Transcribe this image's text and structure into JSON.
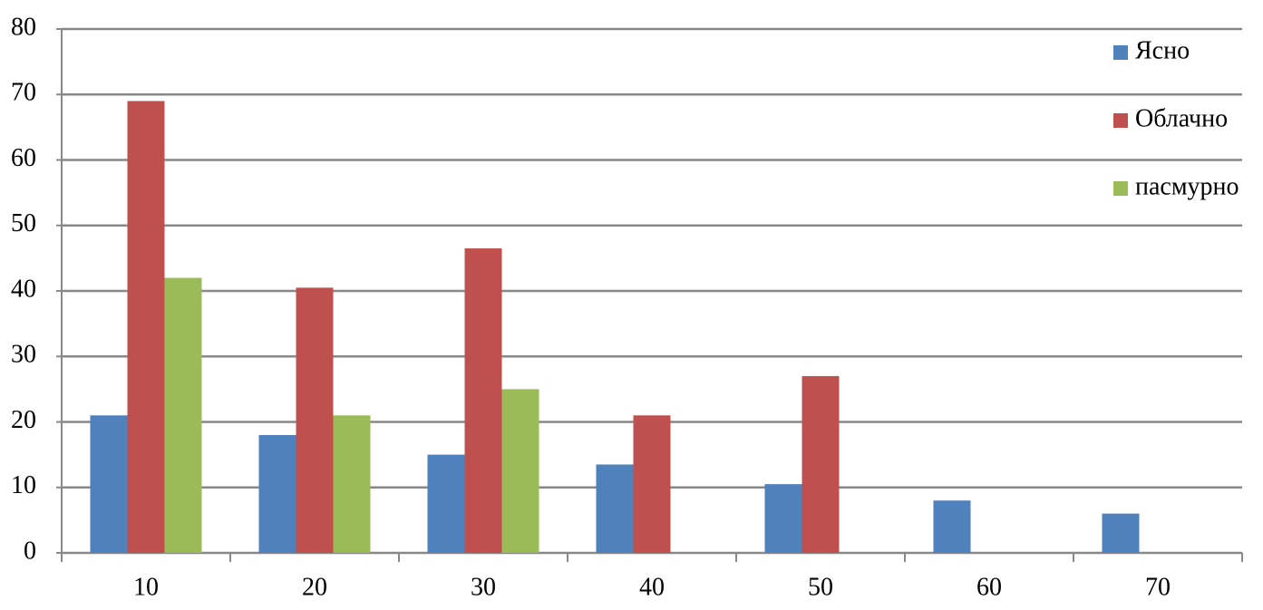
{
  "chart_data": {
    "type": "bar",
    "categories": [
      "10",
      "20",
      "30",
      "40",
      "50",
      "60",
      "70"
    ],
    "series": [
      {
        "name": "Ясно",
        "color": "#4f81bd",
        "values": [
          21,
          18,
          15,
          13.5,
          10.5,
          8,
          6
        ]
      },
      {
        "name": "Облачно",
        "color": "#c0504d",
        "values": [
          69,
          40.5,
          46.5,
          21,
          27,
          null,
          null
        ]
      },
      {
        "name": "пасмурно",
        "color": "#9bbb59",
        "values": [
          42,
          21,
          25,
          null,
          null,
          null,
          null
        ]
      }
    ],
    "ylim": [
      0,
      80
    ],
    "yticks": [
      0,
      10,
      20,
      30,
      40,
      50,
      60,
      70,
      80
    ],
    "grid": true,
    "legend": "top-right"
  }
}
